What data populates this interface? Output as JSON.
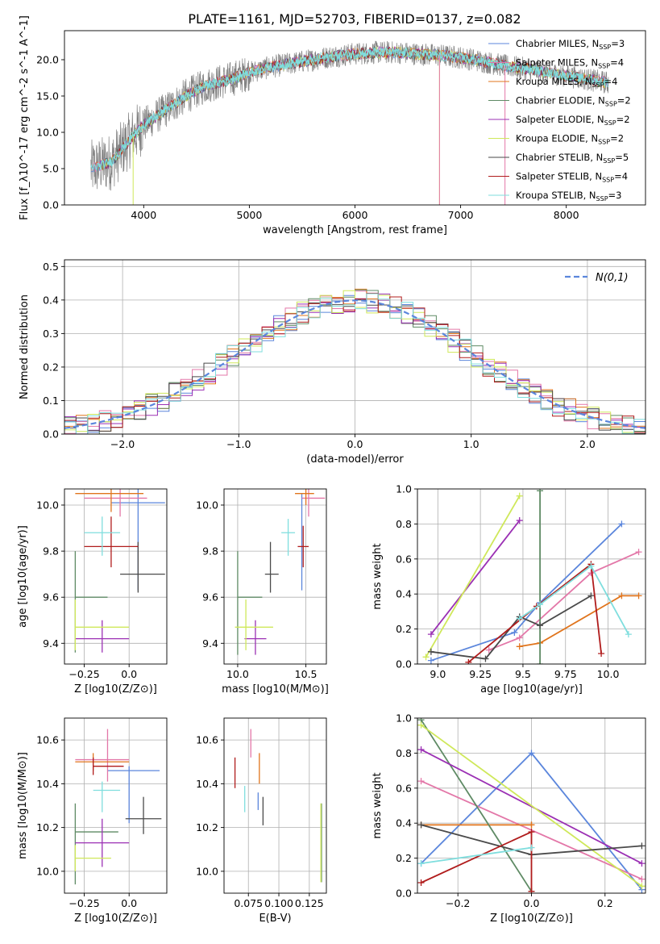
{
  "figure": {
    "title": "PLATE=1161, MJD=52703, FIBERID=0137, z=0.082"
  },
  "colors": {
    "Chabrier MILES": "#5b86dc",
    "Salpeter MILES": "#e377a8",
    "Kroupa MILES": "#e0741c",
    "Chabrier ELODIE": "#5e8a64",
    "Salpeter ELODIE": "#9b30b4",
    "Kroupa ELODIE": "#cfe85a",
    "Chabrier STELIB": "#4a4a4a",
    "Salpeter STELIB": "#b01c1c",
    "Kroupa STELIB": "#7fdede",
    "observed": "#808080",
    "normal": "#5b86dc"
  },
  "chart_data": [
    {
      "id": "spectrum",
      "type": "line",
      "xlabel": "wavelength [Angstrom, rest frame]",
      "ylabel": "Flux [f_λ10^-17 erg cm^-2 s^-1 A^-1]",
      "xlim": [
        3250,
        8750
      ],
      "ylim": [
        0,
        24
      ],
      "xticks": [
        4000,
        5000,
        6000,
        7000,
        8000
      ],
      "yticks": [
        0,
        5,
        10,
        15,
        20
      ],
      "legend_position": "right",
      "continuum": {
        "x": [
          3500,
          3700,
          3900,
          4000,
          4200,
          4400,
          4600,
          4800,
          5000,
          5200,
          5400,
          5600,
          5800,
          6000,
          6200,
          6400,
          6600,
          6800,
          7000,
          7200,
          7400,
          7600,
          7800,
          8000,
          8200,
          8400
        ],
        "y": [
          5.0,
          6.0,
          9.5,
          11.0,
          13.0,
          15.0,
          16.5,
          17.2,
          18.2,
          19.0,
          19.5,
          20.0,
          20.5,
          20.8,
          21.0,
          21.0,
          20.8,
          20.6,
          20.3,
          19.8,
          19.2,
          18.8,
          18.3,
          17.8,
          17.3,
          16.8
        ]
      },
      "series": [
        {
          "name": "Chabrier MILES",
          "nssp": 3
        },
        {
          "name": "Salpeter MILES",
          "nssp": 4
        },
        {
          "name": "Kroupa MILES",
          "nssp": 4
        },
        {
          "name": "Chabrier ELODIE",
          "nssp": 2
        },
        {
          "name": "Salpeter ELODIE",
          "nssp": 2
        },
        {
          "name": "Kroupa ELODIE",
          "nssp": 2
        },
        {
          "name": "Chabrier STELIB",
          "nssp": 5
        },
        {
          "name": "Salpeter STELIB",
          "nssp": 4
        },
        {
          "name": "Kroupa STELIB",
          "nssp": 3
        }
      ]
    },
    {
      "id": "residuals",
      "type": "line",
      "xlabel": "(data-model)/error",
      "ylabel": "Normed distribution",
      "xlim": [
        -2.5,
        2.5
      ],
      "ylim": [
        0,
        0.52
      ],
      "xticks": [
        -2,
        -1,
        0,
        1,
        2
      ],
      "yticks": [
        0.0,
        0.1,
        0.2,
        0.3,
        0.4,
        0.5
      ],
      "grid": true,
      "legend_position": "top-right",
      "normal_label": "N(0,1)",
      "bin_width": 0.1
    },
    {
      "id": "age-vs-Z",
      "type": "scatter",
      "xlabel": "Z [log10(Z/Z⊙)]",
      "ylabel": "age [log10(age/yr)]",
      "xlim": [
        -0.36,
        0.21
      ],
      "ylim": [
        9.31,
        10.07
      ],
      "xticks": [
        -0.25,
        0.0
      ],
      "yticks": [
        9.4,
        9.6,
        9.8,
        10.0
      ],
      "grid": true,
      "points": [
        {
          "series": "Chabrier MILES",
          "x": 0.05,
          "y": 10.01,
          "xerr": [
            0.15,
            0.15
          ],
          "yerr": [
            0.38,
            0.08
          ]
        },
        {
          "series": "Salpeter MILES",
          "x": -0.05,
          "y": 10.03,
          "xerr": [
            0.2,
            0.15
          ],
          "yerr": [
            0.08,
            0.08
          ]
        },
        {
          "series": "Kroupa MILES",
          "x": -0.1,
          "y": 10.05,
          "xerr": [
            0.2,
            0.18
          ],
          "yerr": [
            0.08,
            0.08
          ]
        },
        {
          "series": "Chabrier ELODIE",
          "x": -0.3,
          "y": 9.6,
          "xerr": [
            0.0,
            0.18
          ],
          "yerr": [
            0.24,
            0.2
          ]
        },
        {
          "series": "Salpeter ELODIE",
          "x": -0.15,
          "y": 9.42,
          "xerr": [
            0.15,
            0.15
          ],
          "yerr": [
            0.06,
            0.08
          ]
        },
        {
          "series": "Kroupa ELODIE",
          "x": -0.3,
          "y": 9.47,
          "xerr": [
            0.0,
            0.3
          ],
          "yerr": [
            0.1,
            0.12
          ]
        },
        {
          "series": "Chabrier STELIB",
          "x": 0.05,
          "y": 9.7,
          "xerr": [
            0.1,
            0.15
          ],
          "yerr": [
            0.08,
            0.14
          ]
        },
        {
          "series": "Salpeter STELIB",
          "x": -0.1,
          "y": 9.82,
          "xerr": [
            0.15,
            0.15
          ],
          "yerr": [
            0.09,
            0.13
          ]
        },
        {
          "series": "Kroupa STELIB",
          "x": -0.15,
          "y": 9.88,
          "xerr": [
            0.1,
            0.1
          ],
          "yerr": [
            0.1,
            0.07
          ]
        }
      ]
    },
    {
      "id": "age-vs-mass",
      "type": "scatter",
      "xlabel": "mass [log10(M/M⊙)]",
      "ylabel": "",
      "xlim": [
        9.9,
        10.65
      ],
      "ylim": [
        9.31,
        10.07
      ],
      "xticks": [
        10.0,
        10.5
      ],
      "yticks": [
        9.4,
        9.6,
        9.8,
        10.0
      ],
      "grid": true,
      "points": [
        {
          "series": "Chabrier MILES",
          "x": 10.47,
          "y": 10.0,
          "xerr": [
            0.0,
            0.0
          ],
          "yerr": [
            0.37,
            0.05
          ]
        },
        {
          "series": "Salpeter MILES",
          "x": 10.52,
          "y": 10.03,
          "xerr": [
            0.05,
            0.12
          ],
          "yerr": [
            0.08,
            0.08
          ]
        },
        {
          "series": "Kroupa MILES",
          "x": 10.5,
          "y": 10.05,
          "xerr": [
            0.08,
            0.06
          ],
          "yerr": [
            0.05,
            0.06
          ]
        },
        {
          "series": "Chabrier ELODIE",
          "x": 10.0,
          "y": 9.6,
          "xerr": [
            0.0,
            0.18
          ],
          "yerr": [
            0.25,
            0.2
          ]
        },
        {
          "series": "Salpeter ELODIE",
          "x": 10.13,
          "y": 9.42,
          "xerr": [
            0.08,
            0.08
          ],
          "yerr": [
            0.07,
            0.08
          ]
        },
        {
          "series": "Kroupa ELODIE",
          "x": 10.06,
          "y": 9.47,
          "xerr": [
            0.08,
            0.2
          ],
          "yerr": [
            0.1,
            0.12
          ]
        },
        {
          "series": "Chabrier STELIB",
          "x": 10.24,
          "y": 9.7,
          "xerr": [
            0.04,
            0.06
          ],
          "yerr": [
            0.08,
            0.14
          ]
        },
        {
          "series": "Salpeter STELIB",
          "x": 10.48,
          "y": 9.82,
          "xerr": [
            0.04,
            0.04
          ],
          "yerr": [
            0.09,
            0.09
          ]
        },
        {
          "series": "Kroupa STELIB",
          "x": 10.37,
          "y": 9.88,
          "xerr": [
            0.05,
            0.05
          ],
          "yerr": [
            0.1,
            0.06
          ]
        }
      ]
    },
    {
      "id": "weight-vs-age",
      "type": "line",
      "xlabel": "age [log10(age/yr)]",
      "ylabel": "mass weight",
      "xlim": [
        8.88,
        10.22
      ],
      "ylim": [
        0,
        1
      ],
      "xticks": [
        9.0,
        9.25,
        9.5,
        9.75,
        10.0
      ],
      "yticks": [
        0.0,
        0.2,
        0.4,
        0.6,
        0.8,
        1.0
      ],
      "grid": true,
      "series": [
        {
          "name": "Chabrier MILES",
          "x": [
            8.96,
            9.45,
            9.6,
            10.08
          ],
          "y": [
            0.02,
            0.18,
            0.35,
            0.8
          ]
        },
        {
          "name": "Salpeter MILES",
          "x": [
            9.3,
            9.48,
            9.9,
            10.18
          ],
          "y": [
            0.08,
            0.15,
            0.52,
            0.64
          ]
        },
        {
          "name": "Kroupa MILES",
          "x": [
            9.48,
            9.6,
            10.08,
            10.18
          ],
          "y": [
            0.1,
            0.12,
            0.39,
            0.39
          ]
        },
        {
          "name": "Chabrier ELODIE",
          "x": [
            9.6,
            9.6
          ],
          "y": [
            0.0,
            0.99
          ]
        },
        {
          "name": "Salpeter ELODIE",
          "x": [
            8.96,
            9.48
          ],
          "y": [
            0.17,
            0.82
          ]
        },
        {
          "name": "Kroupa ELODIE",
          "x": [
            8.93,
            9.48
          ],
          "y": [
            0.04,
            0.96
          ]
        },
        {
          "name": "Chabrier STELIB",
          "x": [
            8.96,
            9.28,
            9.48,
            9.6,
            9.9
          ],
          "y": [
            0.07,
            0.03,
            0.27,
            0.22,
            0.39
          ]
        },
        {
          "name": "Salpeter STELIB",
          "x": [
            9.18,
            9.58,
            9.9,
            9.96
          ],
          "y": [
            0.01,
            0.33,
            0.57,
            0.06
          ]
        },
        {
          "name": "Kroupa STELIB",
          "x": [
            9.48,
            9.6,
            9.9,
            10.12
          ],
          "y": [
            0.26,
            0.34,
            0.56,
            0.17
          ]
        }
      ]
    },
    {
      "id": "mass-vs-Z",
      "type": "scatter",
      "xlabel": "Z [log10(Z/Z⊙)]",
      "ylabel": "mass [log10(M/M⊙)]",
      "xlim": [
        -0.36,
        0.21
      ],
      "ylim": [
        9.9,
        10.7
      ],
      "xticks": [
        -0.25,
        0.0
      ],
      "yticks": [
        10.0,
        10.2,
        10.4,
        10.6
      ],
      "grid": true,
      "points": [
        {
          "series": "Chabrier MILES",
          "x": 0.0,
          "y": 10.46,
          "xerr": [
            0.12,
            0.17
          ],
          "yerr": [
            0.24,
            0.02
          ]
        },
        {
          "series": "Salpeter MILES",
          "x": -0.12,
          "y": 10.51,
          "xerr": [
            0.18,
            0.12
          ],
          "yerr": [
            0.1,
            0.14
          ]
        },
        {
          "series": "Kroupa MILES",
          "x": -0.2,
          "y": 10.5,
          "xerr": [
            0.1,
            0.2
          ],
          "yerr": [
            0.04,
            0.04
          ]
        },
        {
          "series": "Chabrier ELODIE",
          "x": -0.3,
          "y": 10.18,
          "xerr": [
            0.0,
            0.24
          ],
          "yerr": [
            0.24,
            0.13
          ]
        },
        {
          "series": "Salpeter ELODIE",
          "x": -0.15,
          "y": 10.13,
          "xerr": [
            0.15,
            0.15
          ],
          "yerr": [
            0.11,
            0.11
          ]
        },
        {
          "series": "Kroupa ELODIE",
          "x": -0.3,
          "y": 10.06,
          "xerr": [
            0.0,
            0.2
          ],
          "yerr": [
            0.06,
            0.06
          ]
        },
        {
          "series": "Chabrier STELIB",
          "x": 0.08,
          "y": 10.24,
          "xerr": [
            0.1,
            0.1
          ],
          "yerr": [
            0.07,
            0.1
          ]
        },
        {
          "series": "Salpeter STELIB",
          "x": -0.2,
          "y": 10.48,
          "xerr": [
            0.0,
            0.17
          ],
          "yerr": [
            0.04,
            0.04
          ]
        },
        {
          "series": "Kroupa STELIB",
          "x": -0.15,
          "y": 10.37,
          "xerr": [
            0.05,
            0.1
          ],
          "yerr": [
            0.1,
            0.04
          ]
        }
      ]
    },
    {
      "id": "mass-vs-ebv",
      "type": "scatter",
      "xlabel": "E(B-V)",
      "ylabel": "",
      "xlim": [
        0.055,
        0.139
      ],
      "ylim": [
        9.9,
        10.7
      ],
      "xticks": [
        0.075,
        0.1,
        0.125
      ],
      "xtick_labels": [
        "0.075",
        "0.100",
        "0.125"
      ],
      "yticks": [
        10.0,
        10.2,
        10.4,
        10.6
      ],
      "grid": true,
      "points": [
        {
          "series": "Chabrier MILES",
          "x": 0.083,
          "y": 10.33,
          "xerr": [
            0.0,
            0.0
          ],
          "yerr": [
            0.05,
            0.03
          ]
        },
        {
          "series": "Salpeter MILES",
          "x": 0.077,
          "y": 10.6,
          "xerr": [
            0.0,
            0.0
          ],
          "yerr": [
            0.08,
            0.05
          ]
        },
        {
          "series": "Kroupa MILES",
          "x": 0.084,
          "y": 10.46,
          "xerr": [
            0.0,
            0.0
          ],
          "yerr": [
            0.06,
            0.08
          ]
        },
        {
          "series": "Chabrier ELODIE",
          "x": 0.135,
          "y": 10.13,
          "xerr": [
            0.0,
            0.0
          ],
          "yerr": [
            0.18,
            0.18
          ]
        },
        {
          "series": "Kroupa ELODIE",
          "x": 0.1345,
          "y": 10.13,
          "xerr": [
            0.0,
            0.0
          ],
          "yerr": [
            0.18,
            0.18
          ]
        },
        {
          "series": "Chabrier STELIB",
          "x": 0.087,
          "y": 10.28,
          "xerr": [
            0.0,
            0.0
          ],
          "yerr": [
            0.07,
            0.06
          ]
        },
        {
          "series": "Salpeter STELIB",
          "x": 0.064,
          "y": 10.45,
          "xerr": [
            0.0,
            0.0
          ],
          "yerr": [
            0.07,
            0.07
          ]
        },
        {
          "series": "Kroupa STELIB",
          "x": 0.072,
          "y": 10.33,
          "xerr": [
            0.0,
            0.0
          ],
          "yerr": [
            0.06,
            0.06
          ]
        }
      ]
    },
    {
      "id": "weight-vs-Z",
      "type": "line",
      "xlabel": "Z [log10(Z/Z⊙)]",
      "ylabel": "mass weight",
      "xlim": [
        -0.31,
        0.31
      ],
      "ylim": [
        0,
        1
      ],
      "xticks": [
        -0.2,
        0.0,
        0.2
      ],
      "yticks": [
        0.0,
        0.2,
        0.4,
        0.6,
        0.8,
        1.0
      ],
      "grid": true,
      "series": [
        {
          "name": "Chabrier MILES",
          "x": [
            -0.3,
            0.0,
            0.3
          ],
          "y": [
            0.17,
            0.8,
            0.02
          ]
        },
        {
          "name": "Salpeter MILES",
          "x": [
            -0.3,
            0.3
          ],
          "y": [
            0.64,
            0.08
          ]
        },
        {
          "name": "Kroupa MILES",
          "x": [
            -0.3,
            0.0,
            0.0
          ],
          "y": [
            0.39,
            0.39,
            0.39
          ]
        },
        {
          "name": "Chabrier ELODIE",
          "x": [
            -0.3,
            0.0
          ],
          "y": [
            0.99,
            0.01
          ]
        },
        {
          "name": "Salpeter ELODIE",
          "x": [
            -0.3,
            0.3
          ],
          "y": [
            0.82,
            0.17
          ]
        },
        {
          "name": "Kroupa ELODIE",
          "x": [
            -0.3,
            0.3
          ],
          "y": [
            0.96,
            0.04
          ]
        },
        {
          "name": "Chabrier STELIB",
          "x": [
            -0.3,
            0.0,
            0.3
          ],
          "y": [
            0.39,
            0.22,
            0.27
          ]
        },
        {
          "name": "Salpeter STELIB",
          "x": [
            -0.3,
            0.0,
            0.0
          ],
          "y": [
            0.06,
            0.35,
            0.01
          ]
        },
        {
          "name": "Kroupa STELIB",
          "x": [
            -0.3,
            0.0
          ],
          "y": [
            0.17,
            0.26
          ]
        }
      ]
    }
  ]
}
